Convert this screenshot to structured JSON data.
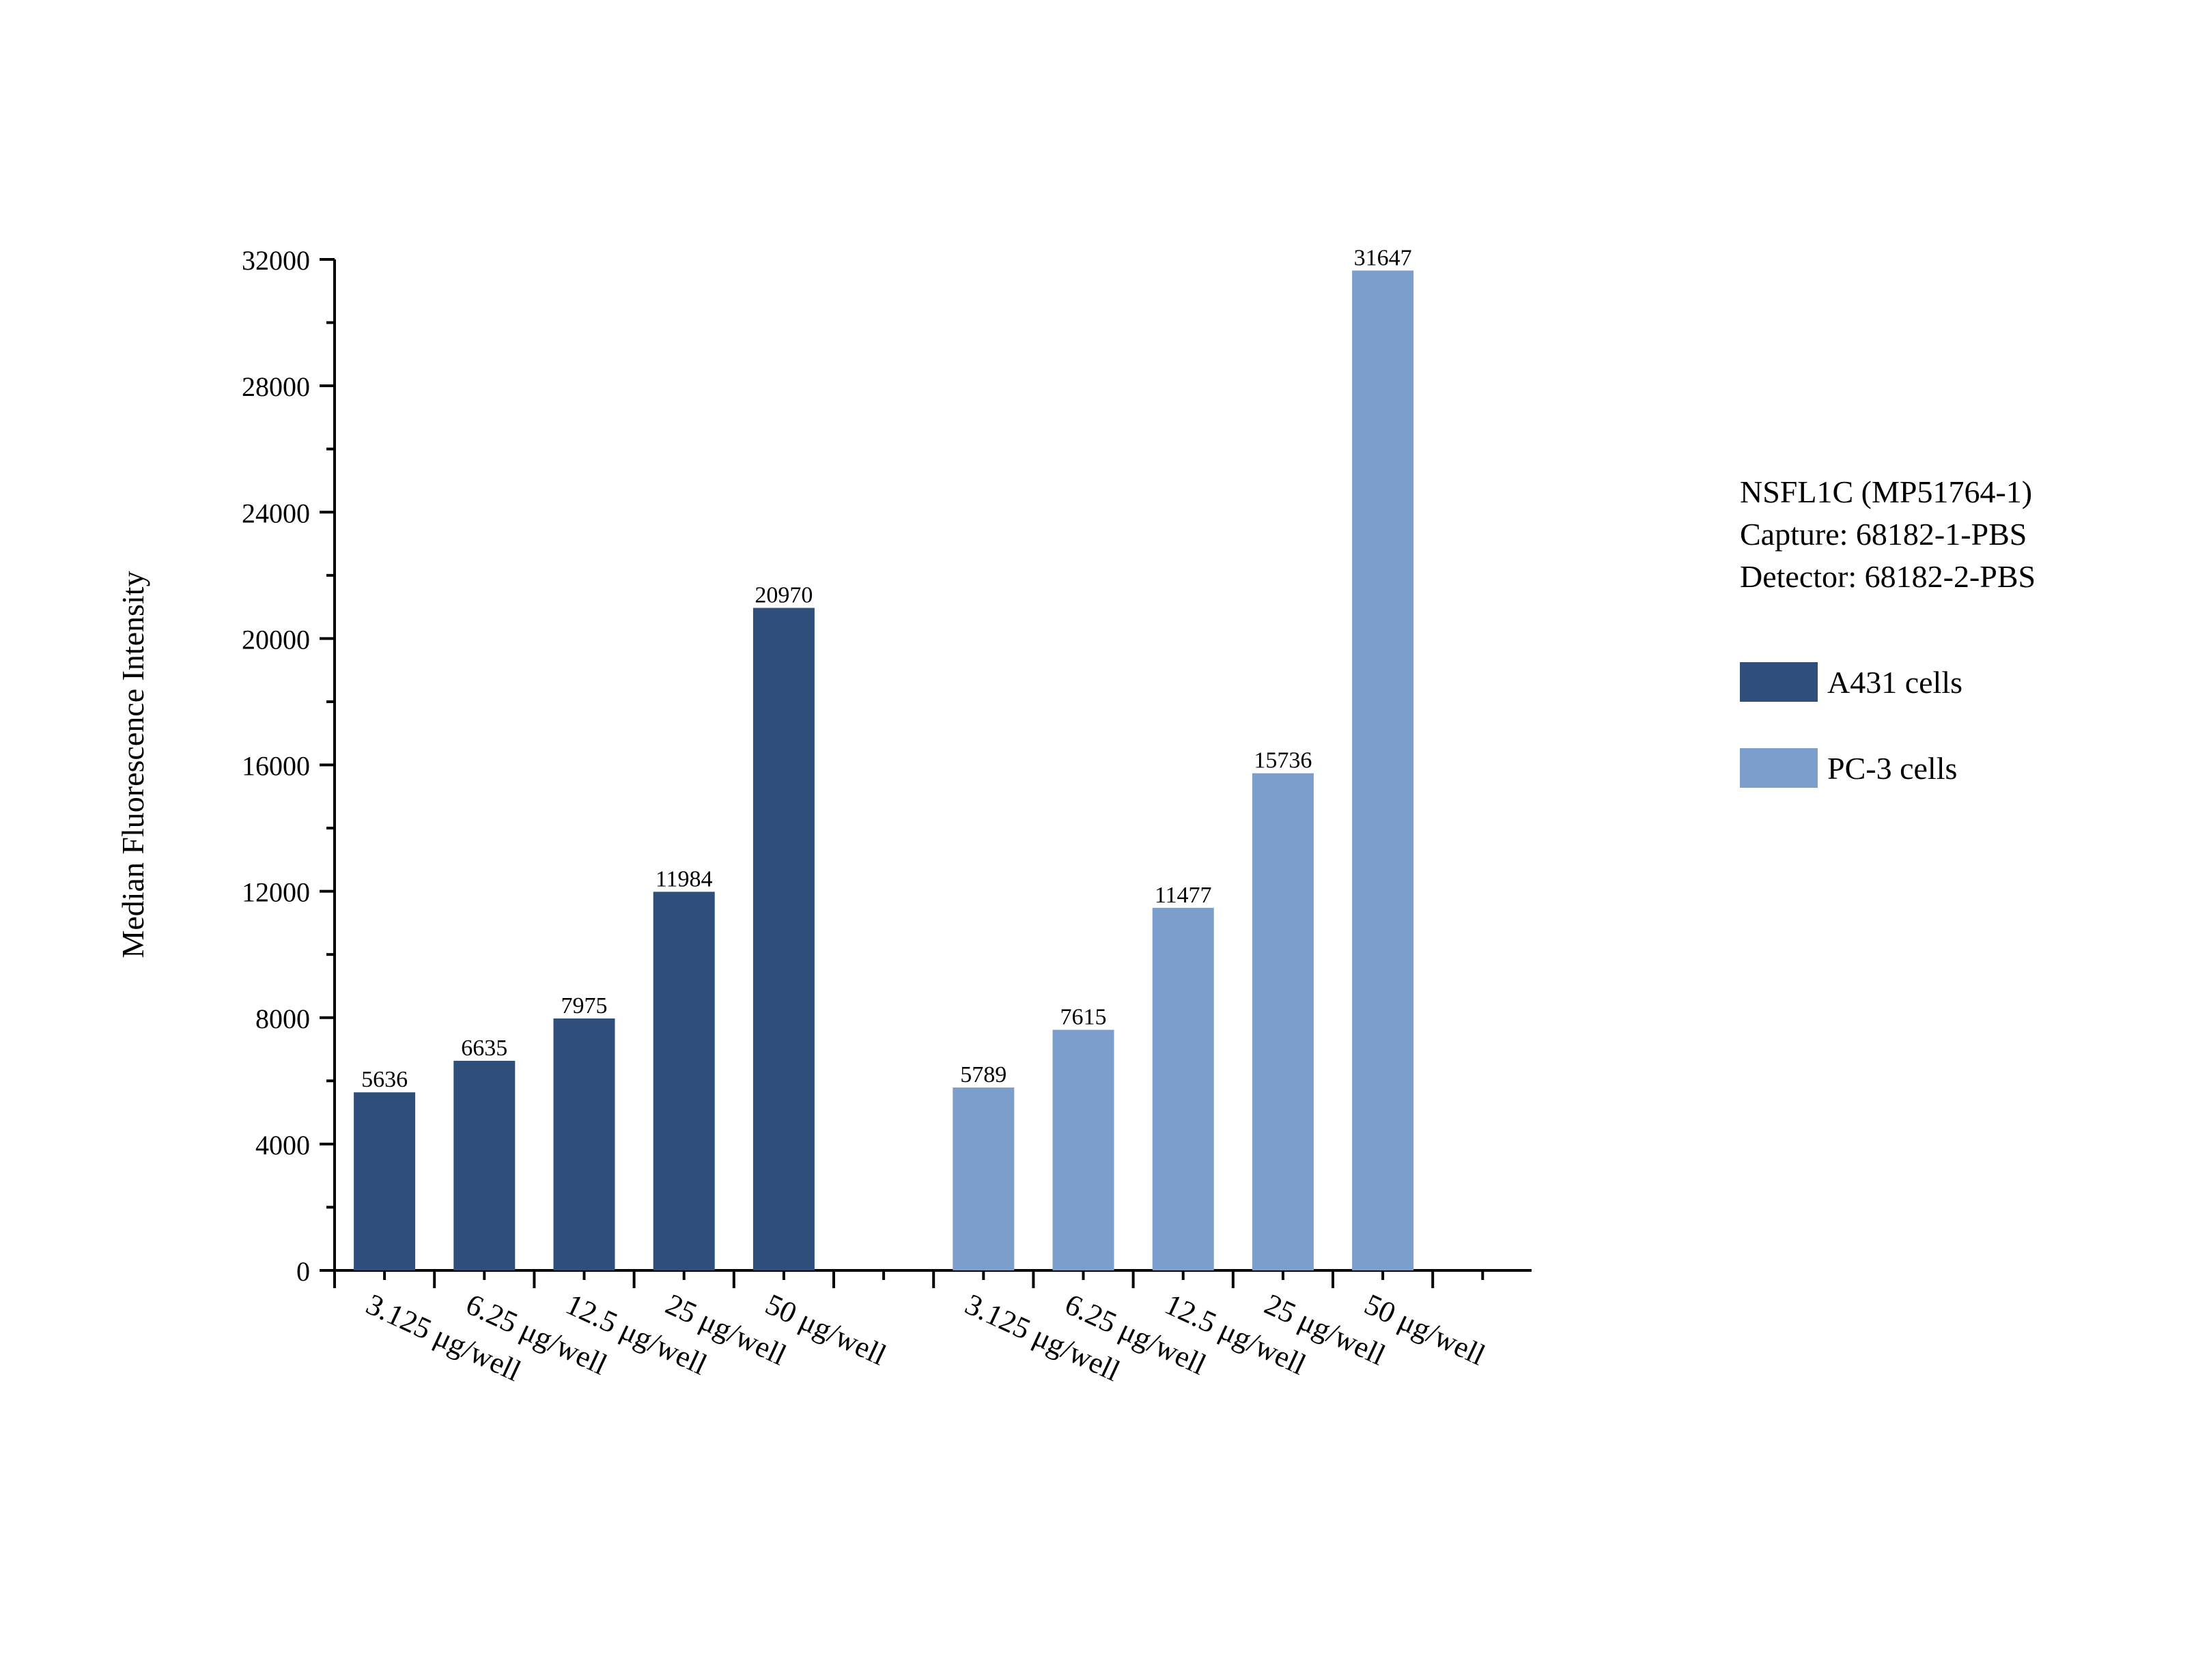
{
  "chart_data": {
    "type": "bar",
    "ylabel": "Median Fluorescence Intensity",
    "ylim": [
      0,
      32000
    ],
    "yticks": [
      0,
      4000,
      8000,
      12000,
      16000,
      20000,
      24000,
      28000,
      32000
    ],
    "grid": false,
    "legend_position": "right",
    "annotation": [
      "NSFL1C (MP51764-1)",
      "Capture: 68182-1-PBS",
      "Detector: 68182-2-PBS"
    ],
    "categories": [
      "3.125 μg/well",
      "6.25 μg/well",
      "12.5 μg/well",
      "25 μg/well",
      "50 μg/well"
    ],
    "series": [
      {
        "name": "A431 cells",
        "color": "#2f4f7a",
        "values": [
          5636,
          6635,
          7975,
          11984,
          20970
        ]
      },
      {
        "name": "PC-3 cells",
        "color": "#7b9ecc",
        "values": [
          5789,
          7615,
          11477,
          15736,
          31647
        ]
      }
    ]
  }
}
